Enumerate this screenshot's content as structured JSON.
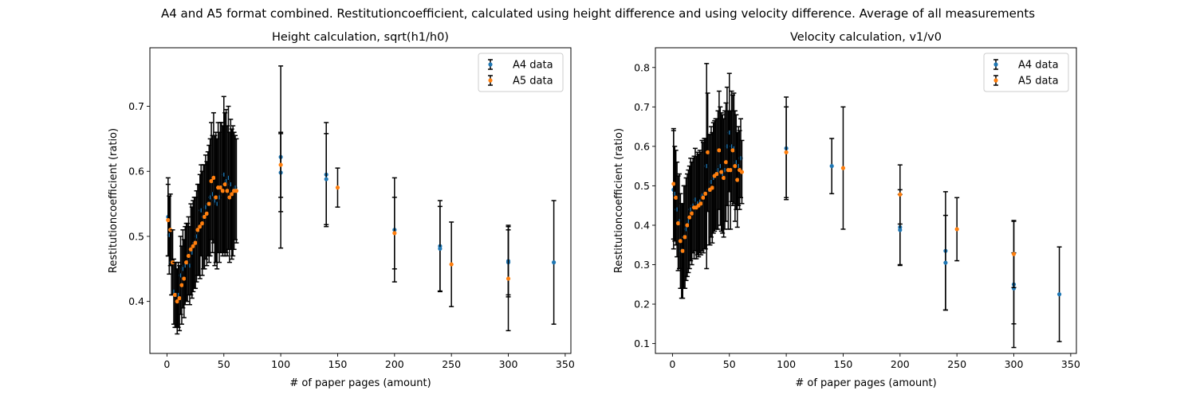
{
  "figure": {
    "suptitle": "A4 and A5 format combined. Restitutioncoefficient, calculated using height difference and using velocity difference. Average of all measurements"
  },
  "colors": {
    "A4": "#1f77b4",
    "A5": "#ff7f0e",
    "errorbar": "#000000"
  },
  "chart_data": [
    {
      "type": "scatter",
      "title": "Height calculation, sqrt(h1/h0)",
      "xlabel": "# of paper pages (amount)",
      "ylabel": "Restitutioncoefficient (ratio)",
      "xlim": [
        -15,
        355
      ],
      "ylim": [
        0.32,
        0.79
      ],
      "xticks": [
        0,
        50,
        100,
        150,
        200,
        250,
        300,
        350
      ],
      "yticks": [
        0.4,
        0.5,
        0.6,
        0.7
      ],
      "grid": false,
      "legend": "top-right",
      "series": [
        {
          "name": "A4 data",
          "points": [
            {
              "x": 1,
              "y": 0.53,
              "err": 0.06
            },
            {
              "x": 2,
              "y": 0.502,
              "err": 0.06
            },
            {
              "x": 4,
              "y": 0.46,
              "err": 0.05
            },
            {
              "x": 6,
              "y": 0.415,
              "err": 0.05
            },
            {
              "x": 8,
              "y": 0.41,
              "err": 0.05
            },
            {
              "x": 10,
              "y": 0.41,
              "err": 0.05
            },
            {
              "x": 12,
              "y": 0.44,
              "err": 0.06
            },
            {
              "x": 14,
              "y": 0.45,
              "err": 0.06
            },
            {
              "x": 16,
              "y": 0.455,
              "err": 0.06
            },
            {
              "x": 18,
              "y": 0.46,
              "err": 0.06
            },
            {
              "x": 20,
              "y": 0.455,
              "err": 0.06
            },
            {
              "x": 22,
              "y": 0.475,
              "err": 0.07
            },
            {
              "x": 24,
              "y": 0.49,
              "err": 0.07
            },
            {
              "x": 26,
              "y": 0.5,
              "err": 0.07
            },
            {
              "x": 28,
              "y": 0.51,
              "err": 0.07
            },
            {
              "x": 30,
              "y": 0.54,
              "err": 0.07
            },
            {
              "x": 32,
              "y": 0.53,
              "err": 0.08
            },
            {
              "x": 34,
              "y": 0.545,
              "err": 0.08
            },
            {
              "x": 36,
              "y": 0.55,
              "err": 0.08
            },
            {
              "x": 38,
              "y": 0.56,
              "err": 0.09
            },
            {
              "x": 40,
              "y": 0.565,
              "err": 0.09
            },
            {
              "x": 42,
              "y": 0.555,
              "err": 0.1
            },
            {
              "x": 44,
              "y": 0.55,
              "err": 0.1
            },
            {
              "x": 46,
              "y": 0.56,
              "err": 0.1
            },
            {
              "x": 48,
              "y": 0.575,
              "err": 0.1
            },
            {
              "x": 50,
              "y": 0.595,
              "err": 0.12
            },
            {
              "x": 52,
              "y": 0.585,
              "err": 0.11
            },
            {
              "x": 54,
              "y": 0.59,
              "err": 0.11
            },
            {
              "x": 56,
              "y": 0.58,
              "err": 0.1
            },
            {
              "x": 58,
              "y": 0.57,
              "err": 0.1
            },
            {
              "x": 60,
              "y": 0.575,
              "err": 0.08
            },
            {
              "x": 100,
              "y": 0.622,
              "err": 0.14
            },
            {
              "x": 100,
              "y": 0.598,
              "err": 0.06
            },
            {
              "x": 140,
              "y": 0.595,
              "err": 0.08
            },
            {
              "x": 140,
              "y": 0.588,
              "err": 0.07
            },
            {
              "x": 200,
              "y": 0.51,
              "err": 0.08
            },
            {
              "x": 240,
              "y": 0.485,
              "err": 0.07
            },
            {
              "x": 240,
              "y": 0.481,
              "err": 0.065
            },
            {
              "x": 300,
              "y": 0.462,
              "err": 0.055
            },
            {
              "x": 300,
              "y": 0.46,
              "err": 0.05
            },
            {
              "x": 340,
              "y": 0.46,
              "err": 0.095
            }
          ]
        },
        {
          "name": "A5 data",
          "points": [
            {
              "x": 1,
              "y": 0.525,
              "err": 0.055
            },
            {
              "x": 3,
              "y": 0.51,
              "err": 0.055
            },
            {
              "x": 5,
              "y": 0.46,
              "err": 0.05
            },
            {
              "x": 7,
              "y": 0.41,
              "err": 0.05
            },
            {
              "x": 9,
              "y": 0.4,
              "err": 0.05
            },
            {
              "x": 11,
              "y": 0.405,
              "err": 0.05
            },
            {
              "x": 13,
              "y": 0.425,
              "err": 0.06
            },
            {
              "x": 15,
              "y": 0.435,
              "err": 0.06
            },
            {
              "x": 17,
              "y": 0.46,
              "err": 0.06
            },
            {
              "x": 19,
              "y": 0.47,
              "err": 0.06
            },
            {
              "x": 21,
              "y": 0.48,
              "err": 0.07
            },
            {
              "x": 23,
              "y": 0.485,
              "err": 0.07
            },
            {
              "x": 25,
              "y": 0.49,
              "err": 0.07
            },
            {
              "x": 27,
              "y": 0.51,
              "err": 0.07
            },
            {
              "x": 29,
              "y": 0.515,
              "err": 0.08
            },
            {
              "x": 31,
              "y": 0.52,
              "err": 0.08
            },
            {
              "x": 33,
              "y": 0.53,
              "err": 0.08
            },
            {
              "x": 35,
              "y": 0.535,
              "err": 0.08
            },
            {
              "x": 37,
              "y": 0.55,
              "err": 0.09
            },
            {
              "x": 39,
              "y": 0.585,
              "err": 0.09
            },
            {
              "x": 41,
              "y": 0.59,
              "err": 0.1
            },
            {
              "x": 43,
              "y": 0.56,
              "err": 0.1
            },
            {
              "x": 45,
              "y": 0.575,
              "err": 0.1
            },
            {
              "x": 47,
              "y": 0.575,
              "err": 0.1
            },
            {
              "x": 49,
              "y": 0.57,
              "err": 0.1
            },
            {
              "x": 51,
              "y": 0.58,
              "err": 0.11
            },
            {
              "x": 53,
              "y": 0.57,
              "err": 0.1
            },
            {
              "x": 55,
              "y": 0.56,
              "err": 0.1
            },
            {
              "x": 57,
              "y": 0.565,
              "err": 0.1
            },
            {
              "x": 59,
              "y": 0.57,
              "err": 0.09
            },
            {
              "x": 61,
              "y": 0.57,
              "err": 0.08
            },
            {
              "x": 100,
              "y": 0.61,
              "err": 0.05
            },
            {
              "x": 150,
              "y": 0.575,
              "err": 0.03
            },
            {
              "x": 200,
              "y": 0.505,
              "err": 0.055
            },
            {
              "x": 250,
              "y": 0.457,
              "err": 0.065
            },
            {
              "x": 300,
              "y": 0.435,
              "err": 0.08
            }
          ]
        }
      ]
    },
    {
      "type": "scatter",
      "title": "Velocity calculation, v1/v0",
      "xlabel": "# of paper pages (amount)",
      "ylabel": "Restitutioncoefficient (ratio)",
      "xlim": [
        -15,
        355
      ],
      "ylim": [
        0.075,
        0.85
      ],
      "xticks": [
        0,
        50,
        100,
        150,
        200,
        250,
        300,
        350
      ],
      "yticks": [
        0.1,
        0.2,
        0.3,
        0.4,
        0.5,
        0.6,
        0.7,
        0.8
      ],
      "grid": false,
      "legend": "top-right",
      "series": [
        {
          "name": "A4 data",
          "points": [
            {
              "x": 1,
              "y": 0.49,
              "err": 0.15
            },
            {
              "x": 2,
              "y": 0.48,
              "err": 0.12
            },
            {
              "x": 4,
              "y": 0.44,
              "err": 0.12
            },
            {
              "x": 6,
              "y": 0.41,
              "err": 0.12
            },
            {
              "x": 8,
              "y": 0.335,
              "err": 0.12
            },
            {
              "x": 10,
              "y": 0.37,
              "err": 0.13
            },
            {
              "x": 12,
              "y": 0.39,
              "err": 0.13
            },
            {
              "x": 14,
              "y": 0.41,
              "err": 0.13
            },
            {
              "x": 16,
              "y": 0.44,
              "err": 0.13
            },
            {
              "x": 18,
              "y": 0.45,
              "err": 0.12
            },
            {
              "x": 20,
              "y": 0.465,
              "err": 0.13
            },
            {
              "x": 22,
              "y": 0.455,
              "err": 0.13
            },
            {
              "x": 24,
              "y": 0.46,
              "err": 0.13
            },
            {
              "x": 26,
              "y": 0.475,
              "err": 0.14
            },
            {
              "x": 28,
              "y": 0.48,
              "err": 0.14
            },
            {
              "x": 30,
              "y": 0.55,
              "err": 0.26
            },
            {
              "x": 32,
              "y": 0.49,
              "err": 0.14
            },
            {
              "x": 34,
              "y": 0.51,
              "err": 0.14
            },
            {
              "x": 36,
              "y": 0.52,
              "err": 0.14
            },
            {
              "x": 38,
              "y": 0.53,
              "err": 0.14
            },
            {
              "x": 40,
              "y": 0.54,
              "err": 0.15
            },
            {
              "x": 42,
              "y": 0.55,
              "err": 0.15
            },
            {
              "x": 44,
              "y": 0.53,
              "err": 0.15
            },
            {
              "x": 46,
              "y": 0.54,
              "err": 0.15
            },
            {
              "x": 48,
              "y": 0.6,
              "err": 0.15
            },
            {
              "x": 50,
              "y": 0.635,
              "err": 0.15
            },
            {
              "x": 52,
              "y": 0.6,
              "err": 0.14
            },
            {
              "x": 54,
              "y": 0.595,
              "err": 0.14
            },
            {
              "x": 56,
              "y": 0.56,
              "err": 0.12
            },
            {
              "x": 58,
              "y": 0.55,
              "err": 0.1
            },
            {
              "x": 60,
              "y": 0.57,
              "err": 0.1
            },
            {
              "x": 100,
              "y": 0.595,
              "err": 0.13
            },
            {
              "x": 140,
              "y": 0.55,
              "err": 0.07
            },
            {
              "x": 200,
              "y": 0.395,
              "err": 0.095
            },
            {
              "x": 200,
              "y": 0.388,
              "err": 0.09
            },
            {
              "x": 240,
              "y": 0.335,
              "err": 0.15
            },
            {
              "x": 240,
              "y": 0.305,
              "err": 0.12
            },
            {
              "x": 300,
              "y": 0.25,
              "err": 0.16
            },
            {
              "x": 300,
              "y": 0.24,
              "err": 0.09
            },
            {
              "x": 340,
              "y": 0.225,
              "err": 0.12
            }
          ]
        },
        {
          "name": "A5 data",
          "points": [
            {
              "x": 1,
              "y": 0.505,
              "err": 0.14
            },
            {
              "x": 3,
              "y": 0.47,
              "err": 0.12
            },
            {
              "x": 5,
              "y": 0.405,
              "err": 0.12
            },
            {
              "x": 7,
              "y": 0.36,
              "err": 0.12
            },
            {
              "x": 9,
              "y": 0.335,
              "err": 0.12
            },
            {
              "x": 11,
              "y": 0.37,
              "err": 0.13
            },
            {
              "x": 13,
              "y": 0.4,
              "err": 0.13
            },
            {
              "x": 15,
              "y": 0.42,
              "err": 0.13
            },
            {
              "x": 17,
              "y": 0.43,
              "err": 0.13
            },
            {
              "x": 19,
              "y": 0.445,
              "err": 0.13
            },
            {
              "x": 21,
              "y": 0.445,
              "err": 0.13
            },
            {
              "x": 23,
              "y": 0.45,
              "err": 0.13
            },
            {
              "x": 25,
              "y": 0.455,
              "err": 0.13
            },
            {
              "x": 27,
              "y": 0.47,
              "err": 0.14
            },
            {
              "x": 29,
              "y": 0.48,
              "err": 0.14
            },
            {
              "x": 31,
              "y": 0.585,
              "err": 0.15
            },
            {
              "x": 33,
              "y": 0.49,
              "err": 0.14
            },
            {
              "x": 35,
              "y": 0.495,
              "err": 0.14
            },
            {
              "x": 37,
              "y": 0.525,
              "err": 0.14
            },
            {
              "x": 39,
              "y": 0.53,
              "err": 0.14
            },
            {
              "x": 41,
              "y": 0.59,
              "err": 0.15
            },
            {
              "x": 43,
              "y": 0.535,
              "err": 0.15
            },
            {
              "x": 45,
              "y": 0.52,
              "err": 0.15
            },
            {
              "x": 47,
              "y": 0.56,
              "err": 0.15
            },
            {
              "x": 49,
              "y": 0.54,
              "err": 0.15
            },
            {
              "x": 51,
              "y": 0.54,
              "err": 0.15
            },
            {
              "x": 53,
              "y": 0.59,
              "err": 0.14
            },
            {
              "x": 55,
              "y": 0.55,
              "err": 0.14
            },
            {
              "x": 57,
              "y": 0.515,
              "err": 0.12
            },
            {
              "x": 59,
              "y": 0.54,
              "err": 0.1
            },
            {
              "x": 61,
              "y": 0.535,
              "err": 0.08
            },
            {
              "x": 100,
              "y": 0.585,
              "err": 0.115
            },
            {
              "x": 150,
              "y": 0.545,
              "err": 0.155
            },
            {
              "x": 200,
              "y": 0.478,
              "err": 0.075
            },
            {
              "x": 250,
              "y": 0.39,
              "err": 0.08
            },
            {
              "x": 300,
              "y": 0.327,
              "err": 0.085
            }
          ]
        }
      ]
    }
  ]
}
